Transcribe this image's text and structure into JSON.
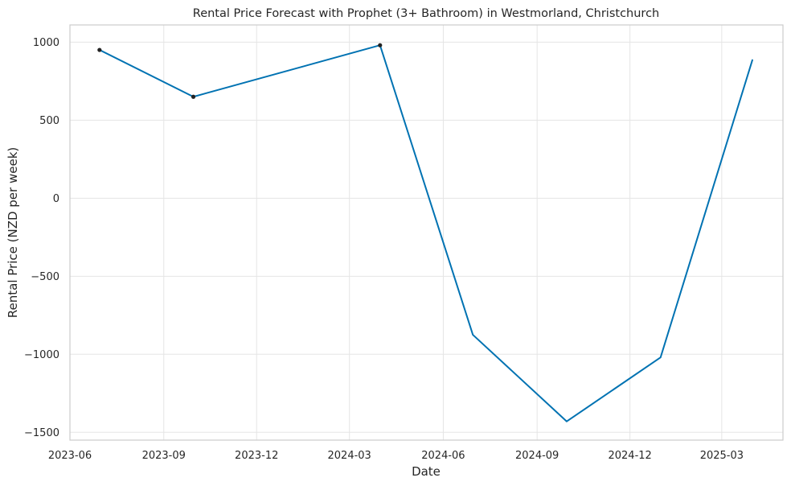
{
  "chart_data": {
    "type": "line",
    "title": "Rental Price Forecast with Prophet (3+ Bathroom) in Westmorland, Christchurch",
    "xlabel": "Date",
    "ylabel": "Rental Price (NZD per week)",
    "x_ticks": [
      "2023-06",
      "2023-09",
      "2023-12",
      "2024-03",
      "2024-06",
      "2024-09",
      "2024-12",
      "2025-03"
    ],
    "y_ticks": [
      1000,
      500,
      0,
      -500,
      -1000,
      -1500
    ],
    "y_tick_labels": [
      "1000",
      "500",
      "0",
      "−500",
      "−1000",
      "−1500"
    ],
    "xlim": [
      "2023-06-01",
      "2025-04-30"
    ],
    "ylim": [
      -1550,
      1110
    ],
    "grid": true,
    "series": [
      {
        "role": "forecast",
        "color": "#0072b2",
        "points": [
          {
            "x": "2023-06-30",
            "y": 950
          },
          {
            "x": "2023-09-30",
            "y": 650
          },
          {
            "x": "2024-03-31",
            "y": 980
          },
          {
            "x": "2024-06-30",
            "y": -875
          },
          {
            "x": "2024-09-30",
            "y": -1430
          },
          {
            "x": "2024-12-31",
            "y": -1020
          },
          {
            "x": "2025-03-31",
            "y": 885
          }
        ]
      },
      {
        "role": "observed",
        "color": "#222222",
        "points": [
          {
            "x": "2023-06-30",
            "y": 950
          },
          {
            "x": "2023-09-30",
            "y": 650
          },
          {
            "x": "2024-03-31",
            "y": 980
          }
        ]
      }
    ]
  }
}
